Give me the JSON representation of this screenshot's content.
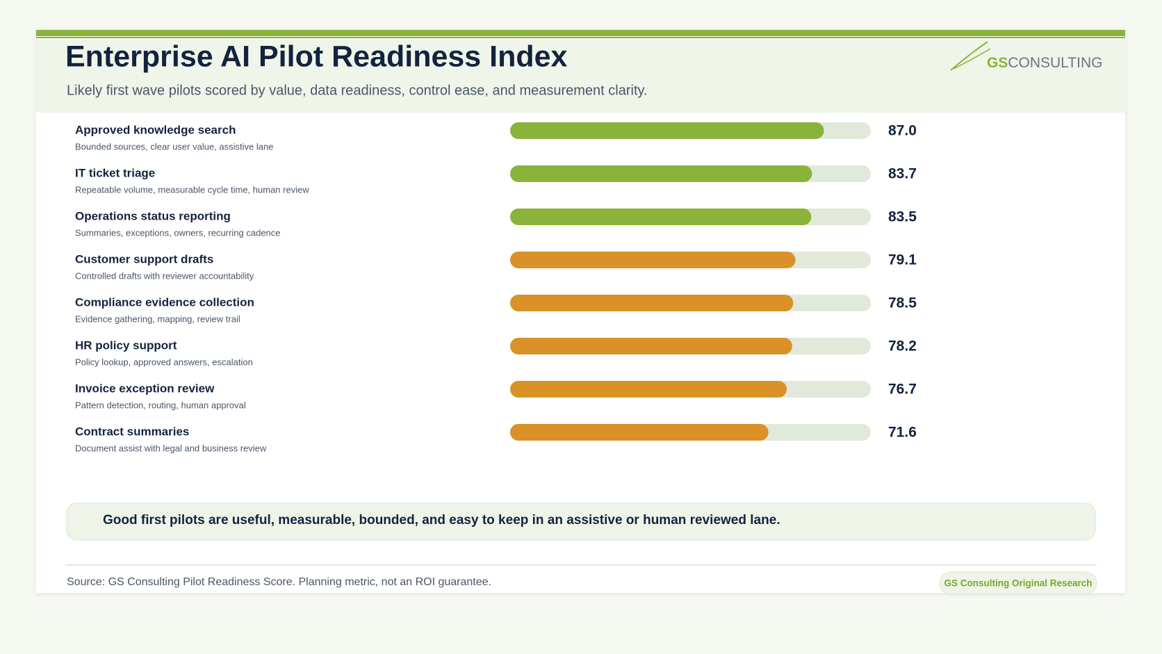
{
  "chart_data": {
    "type": "bar",
    "title": "Enterprise AI Pilot Readiness Index",
    "subtitle": "Likely first wave pilots scored by value, data readiness, control ease, and measurement clarity.",
    "categories": [
      "Approved knowledge search",
      "IT ticket triage",
      "Operations status reporting",
      "Customer support drafts",
      "Compliance evidence collection",
      "HR policy support",
      "Invoice exception review",
      "Contract summaries"
    ],
    "descriptions": [
      "Bounded sources, clear user value, assistive lane",
      "Repeatable volume, measurable cycle time, human review",
      "Summaries, exceptions, owners, recurring cadence",
      "Controlled drafts with reviewer accountability",
      "Evidence gathering, mapping, review trail",
      "Policy lookup, approved answers, escalation",
      "Pattern detection, routing, human approval",
      "Document assist with legal and business review"
    ],
    "values": [
      87.0,
      83.7,
      83.5,
      79.1,
      78.5,
      78.2,
      76.7,
      71.6
    ],
    "value_labels": [
      "87.0",
      "83.7",
      "83.5",
      "79.1",
      "78.5",
      "78.2",
      "76.7",
      "71.6"
    ],
    "colors": [
      "#8ab33a",
      "#8ab33a",
      "#8ab33a",
      "#d99128",
      "#d99128",
      "#d99128",
      "#d99128",
      "#d99128"
    ],
    "track_color": "#e1e9da",
    "xlim": [
      0,
      100
    ],
    "callout": "Good first pilots are useful, measurable, bounded, and easy to keep in an assistive or human reviewed lane.",
    "source": "Source: GS Consulting Pilot Readiness Score. Planning metric, not an ROI guarantee.",
    "badge": "GS Consulting Original Research",
    "logo": {
      "prefix": "GS",
      "suffix": "CONSULTING"
    }
  }
}
